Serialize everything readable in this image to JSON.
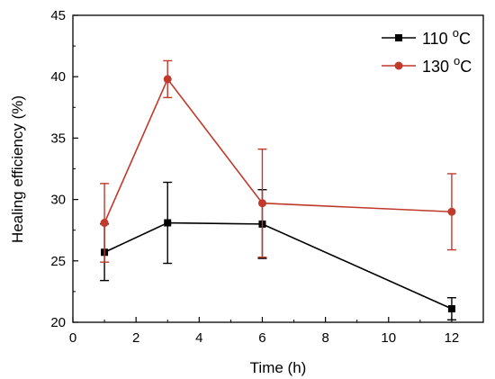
{
  "chart_data": {
    "type": "line",
    "xlabel": "Time (h)",
    "ylabel": "Healing efficiency (%)",
    "xlim": [
      0,
      13
    ],
    "ylim": [
      20,
      45
    ],
    "xticks": [
      0,
      2,
      4,
      6,
      8,
      10,
      12
    ],
    "yticks": [
      20,
      25,
      30,
      35,
      40,
      45
    ],
    "x": [
      1,
      3,
      6,
      12
    ],
    "grid": false,
    "legend_position": "top-right",
    "series": [
      {
        "name": "110",
        "unit": "C",
        "superscript": "o",
        "color": "#000000",
        "marker": "square",
        "values": [
          25.7,
          28.1,
          28.0,
          21.1
        ],
        "error": [
          2.3,
          3.3,
          2.8,
          0.9
        ]
      },
      {
        "name": "130",
        "unit": "C",
        "superscript": "o",
        "color": "#c0392b",
        "marker": "circle",
        "values": [
          28.1,
          39.8,
          29.7,
          29.0
        ],
        "error": [
          3.2,
          1.5,
          4.4,
          3.1
        ]
      }
    ]
  }
}
